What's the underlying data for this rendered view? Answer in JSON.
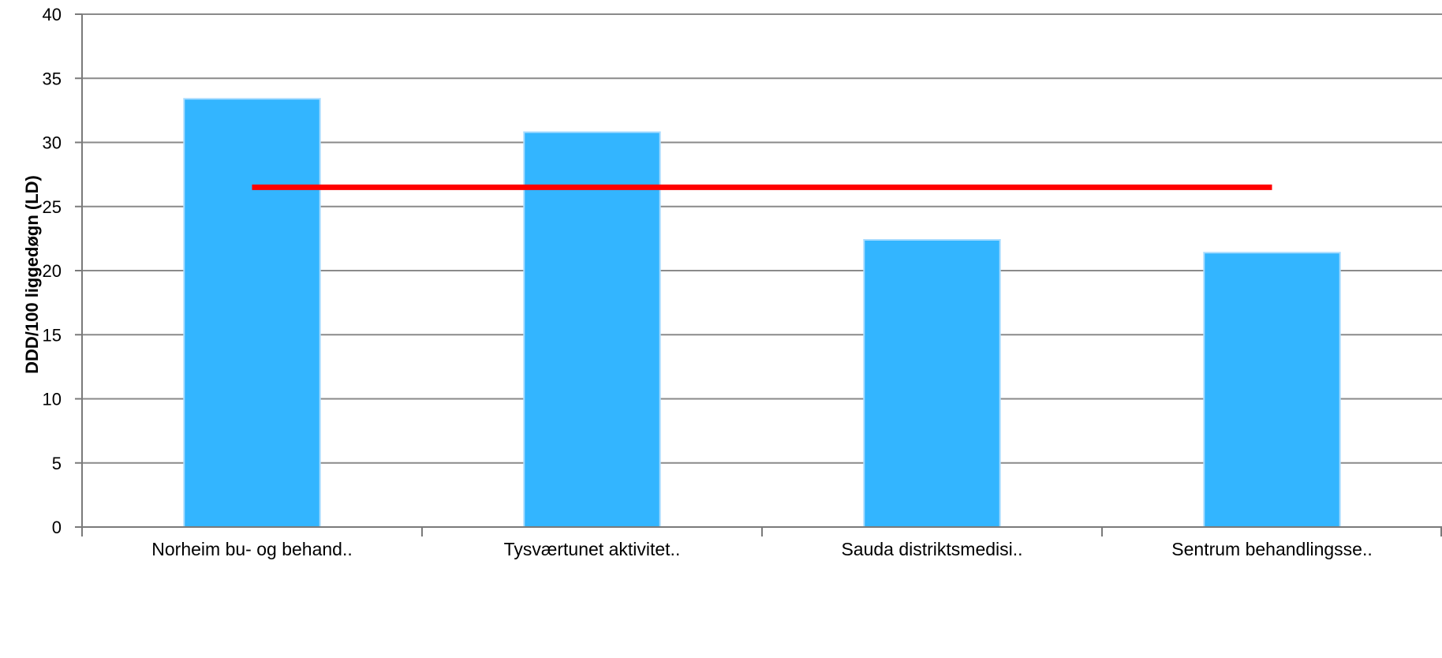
{
  "chart_data": {
    "type": "bar",
    "title": "",
    "xlabel": "",
    "ylabel": "DDD/100 liggedøgn (LD)",
    "ylim": [
      0,
      40
    ],
    "yticks": [
      0,
      5,
      10,
      15,
      20,
      25,
      30,
      35,
      40
    ],
    "grid": true,
    "categories": [
      "Norheim bu- og behand..",
      "Tysværtunet aktivitet..",
      "Sauda distriktsmedisi..",
      "Sentrum behandlingsse.."
    ],
    "series": [
      {
        "values": [
          33.4,
          30.8,
          22.4,
          21.4
        ]
      }
    ],
    "reference_line": {
      "value": 26.5
    },
    "colors": {
      "bar": "#33b5ff",
      "bar_edge": "#a8dcff",
      "reference_line": "#ff0000",
      "grid": "#8a8a8a",
      "axis": "#7a7a7a"
    }
  }
}
